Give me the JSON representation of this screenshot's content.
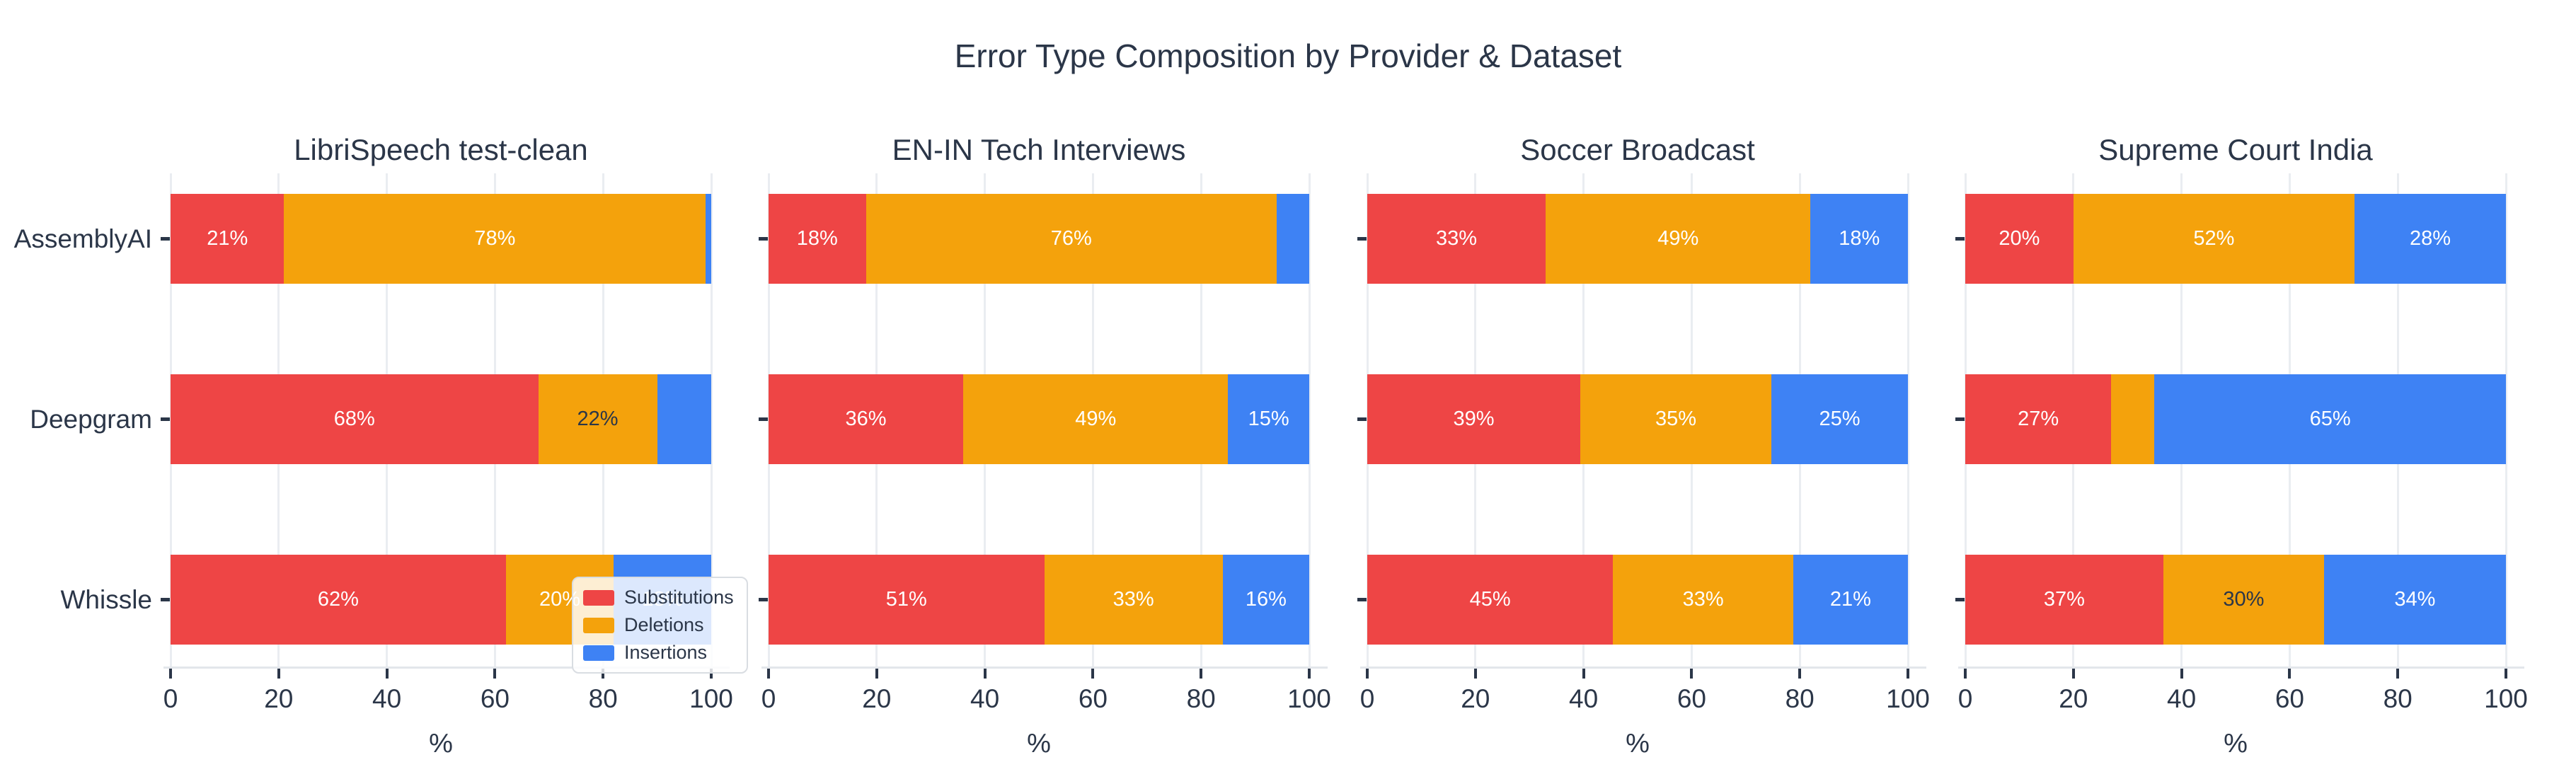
{
  "title": "Error Type Composition by Provider & Dataset",
  "colors": {
    "series": {
      "Substitutions": "#EE4545",
      "Deletions": "#F4A20C",
      "Insertions": "#3E82F4"
    },
    "text_dark": "#2B3648",
    "label_light": "#FFFFFF",
    "grid": "#EAEDF1",
    "axis_line": "#E3E6EB",
    "background": "#FFFFFF",
    "legend_border": "#D9DDE2"
  },
  "legend": {
    "items": [
      {
        "label": "Substitutions",
        "color": "#EE4545"
      },
      {
        "label": "Deletions",
        "color": "#F4A20C"
      },
      {
        "label": "Insertions",
        "color": "#3E82F4"
      }
    ],
    "position": "inside bottom-right of first subplot"
  },
  "chart_data": {
    "type": "bar",
    "stacked": true,
    "orientation": "horizontal",
    "x_axis": {
      "label": "%",
      "ticks": [
        0,
        20,
        40,
        60,
        80,
        100
      ],
      "range": [
        0,
        100
      ],
      "grid": true
    },
    "categories": [
      "AssemblyAI",
      "Deepgram",
      "Whissle"
    ],
    "series_names": [
      "Substitutions",
      "Deletions",
      "Insertions"
    ],
    "panels": [
      {
        "title": "LibriSpeech test-clean",
        "rows": [
          {
            "provider": "AssemblyAI",
            "segments": [
              {
                "series": "Substitutions",
                "value": 21,
                "label": "21%",
                "label_style": "light"
              },
              {
                "series": "Deletions",
                "value": 78,
                "label": "78%",
                "label_style": "light"
              },
              {
                "series": "Insertions",
                "value": 1,
                "label": null,
                "label_style": null
              }
            ]
          },
          {
            "provider": "Deepgram",
            "segments": [
              {
                "series": "Substitutions",
                "value": 68,
                "label": "68%",
                "label_style": "light"
              },
              {
                "series": "Deletions",
                "value": 22,
                "label": "22%",
                "label_style": "dark"
              },
              {
                "series": "Insertions",
                "value": 10,
                "label": null,
                "label_style": null
              }
            ]
          },
          {
            "provider": "Whissle",
            "segments": [
              {
                "series": "Substitutions",
                "value": 62,
                "label": "62%",
                "label_style": "light"
              },
              {
                "series": "Deletions",
                "value": 20,
                "label": "20%",
                "label_style": "light"
              },
              {
                "series": "Insertions",
                "value": 18,
                "label": "18%",
                "label_style": "light"
              }
            ]
          }
        ]
      },
      {
        "title": "EN-IN Tech Interviews",
        "rows": [
          {
            "provider": "AssemblyAI",
            "segments": [
              {
                "series": "Substitutions",
                "value": 18,
                "label": "18%",
                "label_style": "light"
              },
              {
                "series": "Deletions",
                "value": 76,
                "label": "76%",
                "label_style": "light"
              },
              {
                "series": "Insertions",
                "value": 6,
                "label": null,
                "label_style": null
              }
            ]
          },
          {
            "provider": "Deepgram",
            "segments": [
              {
                "series": "Substitutions",
                "value": 36,
                "label": "36%",
                "label_style": "light"
              },
              {
                "series": "Deletions",
                "value": 49,
                "label": "49%",
                "label_style": "light"
              },
              {
                "series": "Insertions",
                "value": 15,
                "label": "15%",
                "label_style": "light"
              }
            ]
          },
          {
            "provider": "Whissle",
            "segments": [
              {
                "series": "Substitutions",
                "value": 51,
                "label": "51%",
                "label_style": "light"
              },
              {
                "series": "Deletions",
                "value": 33,
                "label": "33%",
                "label_style": "light"
              },
              {
                "series": "Insertions",
                "value": 16,
                "label": "16%",
                "label_style": "light"
              }
            ]
          }
        ]
      },
      {
        "title": "Soccer Broadcast",
        "rows": [
          {
            "provider": "AssemblyAI",
            "segments": [
              {
                "series": "Substitutions",
                "value": 33,
                "label": "33%",
                "label_style": "light"
              },
              {
                "series": "Deletions",
                "value": 49,
                "label": "49%",
                "label_style": "light"
              },
              {
                "series": "Insertions",
                "value": 18,
                "label": "18%",
                "label_style": "light"
              }
            ]
          },
          {
            "provider": "Deepgram",
            "segments": [
              {
                "series": "Substitutions",
                "value": 39,
                "label": "39%",
                "label_style": "light"
              },
              {
                "series": "Deletions",
                "value": 35,
                "label": "35%",
                "label_style": "light"
              },
              {
                "series": "Insertions",
                "value": 25,
                "label": "25%",
                "label_style": "light"
              }
            ]
          },
          {
            "provider": "Whissle",
            "segments": [
              {
                "series": "Substitutions",
                "value": 45,
                "label": "45%",
                "label_style": "light"
              },
              {
                "series": "Deletions",
                "value": 33,
                "label": "33%",
                "label_style": "light"
              },
              {
                "series": "Insertions",
                "value": 21,
                "label": "21%",
                "label_style": "light"
              }
            ]
          }
        ]
      },
      {
        "title": "Supreme Court India",
        "rows": [
          {
            "provider": "AssemblyAI",
            "segments": [
              {
                "series": "Substitutions",
                "value": 20,
                "label": "20%",
                "label_style": "light"
              },
              {
                "series": "Deletions",
                "value": 52,
                "label": "52%",
                "label_style": "light"
              },
              {
                "series": "Insertions",
                "value": 28,
                "label": "28%",
                "label_style": "light"
              }
            ]
          },
          {
            "provider": "Deepgram",
            "segments": [
              {
                "series": "Substitutions",
                "value": 27,
                "label": "27%",
                "label_style": "light"
              },
              {
                "series": "Deletions",
                "value": 8,
                "label": null,
                "label_style": null
              },
              {
                "series": "Insertions",
                "value": 65,
                "label": "65%",
                "label_style": "light"
              }
            ]
          },
          {
            "provider": "Whissle",
            "segments": [
              {
                "series": "Substitutions",
                "value": 37,
                "label": "37%",
                "label_style": "light"
              },
              {
                "series": "Deletions",
                "value": 30,
                "label": "30%",
                "label_style": "dark"
              },
              {
                "series": "Insertions",
                "value": 34,
                "label": "34%",
                "label_style": "light"
              }
            ]
          }
        ]
      }
    ]
  }
}
